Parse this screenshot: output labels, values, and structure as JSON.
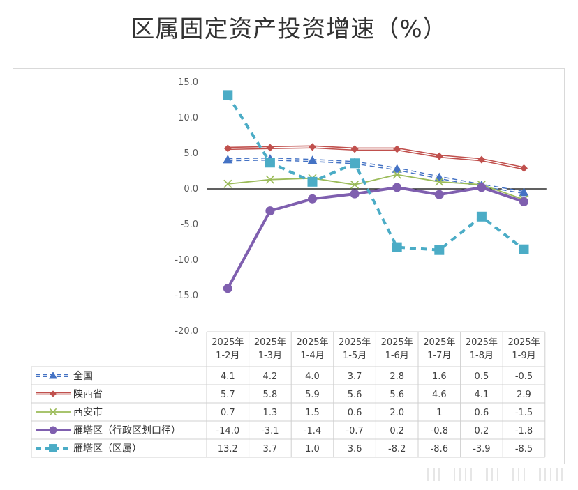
{
  "chart_data": {
    "type": "line",
    "title": "区属固定资产投资增速（%）",
    "categories": [
      [
        "2025年",
        "1-2月"
      ],
      [
        "2025年",
        "1-3月"
      ],
      [
        "2025年",
        "1-4月"
      ],
      [
        "2025年",
        "1-5月"
      ],
      [
        "2025年",
        "1-6月"
      ],
      [
        "2025年",
        "1-7月"
      ],
      [
        "2025年",
        "1-8月"
      ],
      [
        "2025年",
        "1-9月"
      ]
    ],
    "ylim": [
      -20,
      15
    ],
    "yticks": [
      "15.0",
      "10.0",
      "5.0",
      "0.0",
      "-5.0",
      "-10.0",
      "-15.0",
      "-20.0"
    ],
    "series": [
      {
        "name": "全国",
        "color": "#4472c4",
        "marker": "triangle",
        "style": "dashed-double",
        "values": [
          4.1,
          4.2,
          4.0,
          3.7,
          2.8,
          1.6,
          0.5,
          -0.5
        ],
        "labels": [
          "4.1",
          "4.2",
          "4.0",
          "3.7",
          "2.8",
          "1.6",
          "0.5",
          "-0.5"
        ]
      },
      {
        "name": "陕西省",
        "color": "#c0504d",
        "marker": "diamond",
        "style": "solid-double",
        "values": [
          5.7,
          5.8,
          5.9,
          5.6,
          5.6,
          4.6,
          4.1,
          2.9
        ],
        "labels": [
          "5.7",
          "5.8",
          "5.9",
          "5.6",
          "5.6",
          "4.6",
          "4.1",
          "2.9"
        ]
      },
      {
        "name": "西安市",
        "color": "#9bbb59",
        "marker": "x",
        "style": "solid",
        "values": [
          0.7,
          1.3,
          1.5,
          0.6,
          2.0,
          1,
          0.6,
          -1.5
        ],
        "labels": [
          "0.7",
          "1.3",
          "1.5",
          "0.6",
          "2.0",
          "1",
          "0.6",
          "-1.5"
        ]
      },
      {
        "name": "雁塔区（行政区划口径）",
        "color": "#7f5faf",
        "marker": "circle",
        "style": "solid-thick",
        "values": [
          -14.0,
          -3.1,
          -1.4,
          -0.7,
          0.2,
          -0.8,
          0.2,
          -1.8
        ],
        "labels": [
          "-14.0",
          "-3.1",
          "-1.4",
          "-0.7",
          "0.2",
          "-0.8",
          "0.2",
          "-1.8"
        ]
      },
      {
        "name": "雁塔区（区属）",
        "color": "#4bacc6",
        "marker": "square",
        "style": "dashed-thick",
        "values": [
          13.2,
          3.7,
          1.0,
          3.6,
          -8.2,
          -8.6,
          -3.9,
          -8.5
        ],
        "labels": [
          "13.2",
          "3.7",
          "1.0",
          "3.6",
          "-8.2",
          "-8.6",
          "-3.9",
          "-8.5"
        ]
      }
    ]
  }
}
